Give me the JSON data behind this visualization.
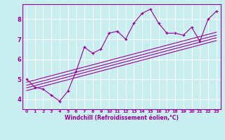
{
  "xlabel": "Windchill (Refroidissement éolien,°C)",
  "bg_color": "#c8eef0",
  "line_color": "#990099",
  "grid_color": "#ffffff",
  "x_data": [
    0,
    1,
    2,
    3,
    4,
    5,
    6,
    7,
    8,
    9,
    10,
    11,
    12,
    13,
    14,
    15,
    16,
    17,
    18,
    19,
    20,
    21,
    22,
    23
  ],
  "y_data": [
    5.0,
    4.6,
    4.5,
    4.2,
    3.9,
    4.4,
    5.4,
    6.6,
    6.3,
    6.5,
    7.3,
    7.4,
    7.0,
    7.8,
    8.3,
    8.5,
    7.8,
    7.3,
    7.3,
    7.2,
    7.6,
    6.9,
    8.0,
    8.4
  ],
  "xlim": [
    -0.5,
    23.5
  ],
  "ylim": [
    3.5,
    8.75
  ],
  "xticks": [
    0,
    1,
    2,
    3,
    4,
    5,
    6,
    7,
    8,
    9,
    10,
    11,
    12,
    13,
    14,
    15,
    16,
    17,
    18,
    19,
    20,
    21,
    22,
    23
  ],
  "yticks": [
    4,
    5,
    6,
    7,
    8
  ],
  "reg_lines": [
    {
      "x0": 0,
      "y0": 4.85,
      "x1": 23,
      "y1": 7.35
    },
    {
      "x0": 0,
      "y0": 4.7,
      "x1": 23,
      "y1": 7.2
    },
    {
      "x0": 0,
      "y0": 4.57,
      "x1": 23,
      "y1": 7.07
    },
    {
      "x0": 0,
      "y0": 4.43,
      "x1": 23,
      "y1": 6.93
    }
  ]
}
